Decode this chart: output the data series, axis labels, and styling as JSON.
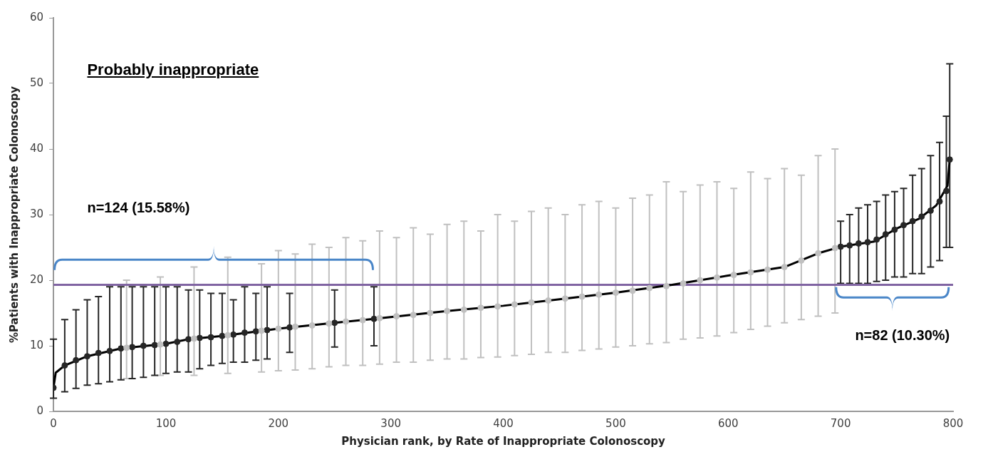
{
  "chart_data": {
    "type": "line",
    "title": "Probably inappropriate",
    "xlabel": "Physician rank, by Rate of Inappropriate Colonoscopy",
    "ylabel": "%Patients with Inappropriate Colonoscopy",
    "annotations": [
      "n=124 (15.58%)",
      "n=82 (10.30%)"
    ],
    "xlim": [
      0,
      800
    ],
    "xticks": [
      0,
      100,
      200,
      300,
      400,
      500,
      600,
      700,
      800
    ],
    "ylim": [
      0,
      60
    ],
    "yticks": [
      0,
      10,
      20,
      30,
      40,
      50,
      60
    ],
    "grid": false,
    "legend": false,
    "ref_lines": [
      {
        "axis": "y",
        "value": 19.3,
        "color": "#8064a2"
      }
    ],
    "series": [
      {
        "type": "scatter",
        "marker": "circle",
        "color": "#c0c0c0",
        "x": [
          65,
          95,
          125,
          155,
          185,
          200,
          215,
          230,
          245,
          260,
          275,
          290,
          305,
          320,
          335,
          350,
          365,
          380,
          395,
          410,
          425,
          440,
          455,
          470,
          485,
          500,
          515,
          530,
          545,
          560,
          575,
          590,
          605,
          620,
          635,
          650,
          665,
          680,
          695
        ],
        "values": [
          9.7,
          10.2,
          11.1,
          11.6,
          12.3,
          12.6,
          12.9,
          13.1,
          13.4,
          13.7,
          13.9,
          14.2,
          14.5,
          14.7,
          15,
          15.3,
          15.5,
          15.8,
          16,
          16.3,
          16.6,
          16.9,
          17.2,
          17.5,
          17.8,
          18.1,
          18.4,
          18.8,
          19.1,
          19.5,
          20,
          20.4,
          20.8,
          21.2,
          21.6,
          22,
          23,
          24.1,
          24.9
        ],
        "errors": [
          [
            5,
            20
          ],
          [
            5.5,
            20.5
          ],
          [
            5.5,
            22
          ],
          [
            5.8,
            23.5
          ],
          [
            6,
            22.5
          ],
          [
            6.2,
            24.5
          ],
          [
            6.3,
            24
          ],
          [
            6.5,
            25.5
          ],
          [
            6.8,
            25
          ],
          [
            7,
            26.5
          ],
          [
            7,
            26
          ],
          [
            7.2,
            27.5
          ],
          [
            7.5,
            26.5
          ],
          [
            7.5,
            28
          ],
          [
            7.8,
            27
          ],
          [
            8,
            28.5
          ],
          [
            8,
            29
          ],
          [
            8.2,
            27.5
          ],
          [
            8.3,
            30
          ],
          [
            8.5,
            29
          ],
          [
            8.7,
            30.5
          ],
          [
            9,
            31
          ],
          [
            9,
            30
          ],
          [
            9.3,
            31.5
          ],
          [
            9.5,
            32
          ],
          [
            9.8,
            31
          ],
          [
            10,
            32.5
          ],
          [
            10.3,
            33
          ],
          [
            10.5,
            35
          ],
          [
            11,
            33.5
          ],
          [
            11.2,
            34.5
          ],
          [
            11.5,
            35
          ],
          [
            12,
            34
          ],
          [
            12.5,
            36.5
          ],
          [
            13,
            35.5
          ],
          [
            13.5,
            37
          ],
          [
            14,
            36
          ],
          [
            14.5,
            39
          ],
          [
            15,
            40
          ]
        ]
      },
      {
        "type": "scatter",
        "marker": "circle",
        "color": "#262626",
        "x": [
          0,
          10,
          20,
          30,
          40,
          50,
          60,
          70,
          80,
          90,
          100,
          110,
          120,
          130,
          140,
          150,
          160,
          170,
          180,
          190,
          210,
          250,
          285
        ],
        "values": [
          3.6,
          7,
          7.8,
          8.4,
          8.9,
          9.2,
          9.6,
          9.8,
          10,
          10.1,
          10.3,
          10.6,
          11,
          11.2,
          11.3,
          11.5,
          11.7,
          12,
          12.2,
          12.4,
          12.8,
          13.5,
          14.1
        ],
        "errors": [
          [
            2,
            11
          ],
          [
            3,
            14
          ],
          [
            3.5,
            15.5
          ],
          [
            4,
            17
          ],
          [
            4.2,
            17.5
          ],
          [
            4.5,
            19
          ],
          [
            4.8,
            19
          ],
          [
            5,
            19
          ],
          [
            5.2,
            19
          ],
          [
            5.5,
            19
          ],
          [
            5.8,
            19
          ],
          [
            6,
            19
          ],
          [
            6,
            18.5
          ],
          [
            6.5,
            18.5
          ],
          [
            7,
            18
          ],
          [
            7.3,
            18
          ],
          [
            7.5,
            17
          ],
          [
            7.5,
            19
          ],
          [
            7.8,
            18
          ],
          [
            8,
            19
          ],
          [
            9,
            18
          ],
          [
            9.8,
            18.5
          ],
          [
            10,
            19
          ]
        ]
      },
      {
        "type": "scatter",
        "marker": "circle",
        "color": "#262626",
        "x": [
          700,
          708,
          716,
          724,
          732,
          740,
          748,
          756,
          764,
          772,
          780,
          788,
          794,
          797
        ],
        "values": [
          25.1,
          25.3,
          25.6,
          25.8,
          26.2,
          27,
          27.7,
          28.4,
          29,
          29.7,
          30.6,
          32,
          33.6,
          38.4
        ],
        "errors": [
          [
            19.5,
            29
          ],
          [
            19.5,
            30
          ],
          [
            19.5,
            31
          ],
          [
            19.5,
            31.5
          ],
          [
            19.8,
            32
          ],
          [
            20,
            33
          ],
          [
            20.5,
            33.5
          ],
          [
            20.5,
            34
          ],
          [
            21,
            36
          ],
          [
            21,
            37
          ],
          [
            22,
            39
          ],
          [
            23,
            41
          ],
          [
            25,
            45
          ],
          [
            25,
            53
          ]
        ]
      },
      {
        "type": "line",
        "marker": "none",
        "line_style": "solid",
        "color": "#000000",
        "x": [
          0,
          2,
          10,
          30,
          60,
          100,
          120,
          150,
          200,
          250,
          285,
          350,
          400,
          450,
          500,
          550,
          600,
          650,
          680,
          700,
          730,
          750,
          770,
          785,
          795,
          797
        ],
        "values": [
          3.6,
          5.9,
          7,
          8.4,
          9.6,
          10.3,
          11,
          11.5,
          12.6,
          13.5,
          14.1,
          15.3,
          16.1,
          17.1,
          18.1,
          19.3,
          20.7,
          22,
          24.1,
          25.1,
          25.9,
          27.9,
          29.4,
          31.4,
          34.4,
          38.4
        ]
      }
    ]
  }
}
